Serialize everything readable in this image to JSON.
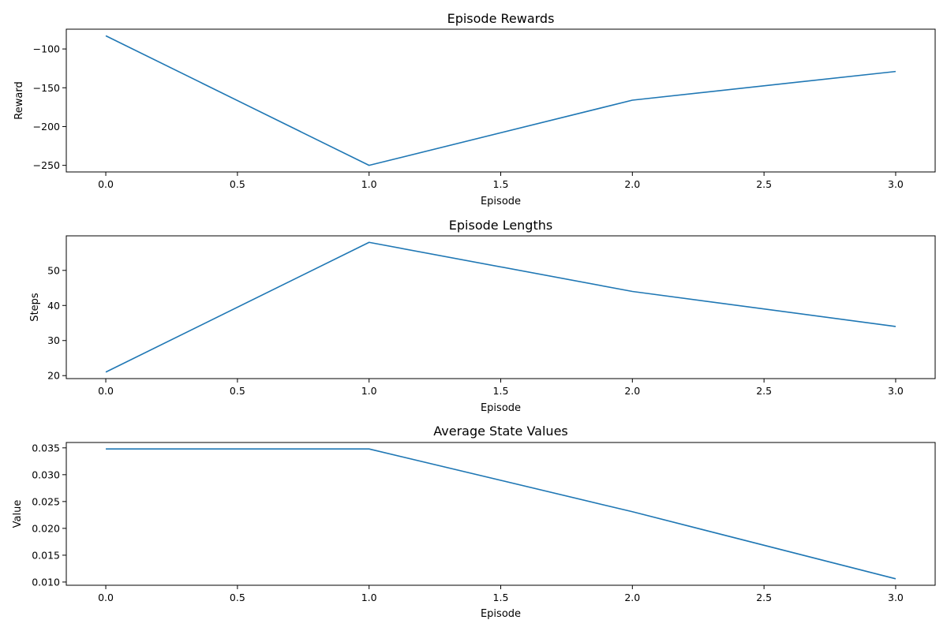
{
  "colors": {
    "line": "#1f77b4",
    "axis": "#000000",
    "background": "#ffffff"
  },
  "chart_data": [
    {
      "type": "line",
      "title": "Episode Rewards",
      "xlabel": "Episode",
      "ylabel": "Reward",
      "x": [
        0,
        1,
        2,
        3
      ],
      "series": [
        {
          "values": [
            -83,
            -250,
            -166,
            -129
          ]
        }
      ],
      "xlim": [
        -0.15,
        3.15
      ],
      "ylim": [
        -258.5,
        -74.5
      ],
      "xticks": [
        0.0,
        0.5,
        1.0,
        1.5,
        2.0,
        2.5,
        3.0
      ],
      "xtick_labels": [
        "0.0",
        "0.5",
        "1.0",
        "1.5",
        "2.0",
        "2.5",
        "3.0"
      ],
      "yticks": [
        -250,
        -200,
        -150,
        -100
      ],
      "ytick_labels": [
        "−250",
        "−200",
        "−150",
        "−100"
      ],
      "grid": false,
      "legend": false
    },
    {
      "type": "line",
      "title": "Episode Lengths",
      "xlabel": "Episode",
      "ylabel": "Steps",
      "x": [
        0,
        1,
        2,
        3
      ],
      "series": [
        {
          "values": [
            21,
            58,
            44,
            34
          ]
        }
      ],
      "xlim": [
        -0.15,
        3.15
      ],
      "ylim": [
        19.15,
        59.85
      ],
      "xticks": [
        0.0,
        0.5,
        1.0,
        1.5,
        2.0,
        2.5,
        3.0
      ],
      "xtick_labels": [
        "0.0",
        "0.5",
        "1.0",
        "1.5",
        "2.0",
        "2.5",
        "3.0"
      ],
      "yticks": [
        20,
        30,
        40,
        50
      ],
      "ytick_labels": [
        "20",
        "30",
        "40",
        "50"
      ],
      "grid": false,
      "legend": false
    },
    {
      "type": "line",
      "title": "Average State Values",
      "xlabel": "Episode",
      "ylabel": "Value",
      "x": [
        0,
        1,
        2,
        3
      ],
      "series": [
        {
          "values": [
            0.0348,
            0.0348,
            0.0231,
            0.0106
          ]
        }
      ],
      "xlim": [
        -0.15,
        3.15
      ],
      "ylim": [
        0.0094,
        0.036
      ],
      "xticks": [
        0.0,
        0.5,
        1.0,
        1.5,
        2.0,
        2.5,
        3.0
      ],
      "xtick_labels": [
        "0.0",
        "0.5",
        "1.0",
        "1.5",
        "2.0",
        "2.5",
        "3.0"
      ],
      "yticks": [
        0.01,
        0.015,
        0.02,
        0.025,
        0.03,
        0.035
      ],
      "ytick_labels": [
        "0.010",
        "0.015",
        "0.020",
        "0.025",
        "0.030",
        "0.035"
      ],
      "grid": false,
      "legend": false
    }
  ]
}
